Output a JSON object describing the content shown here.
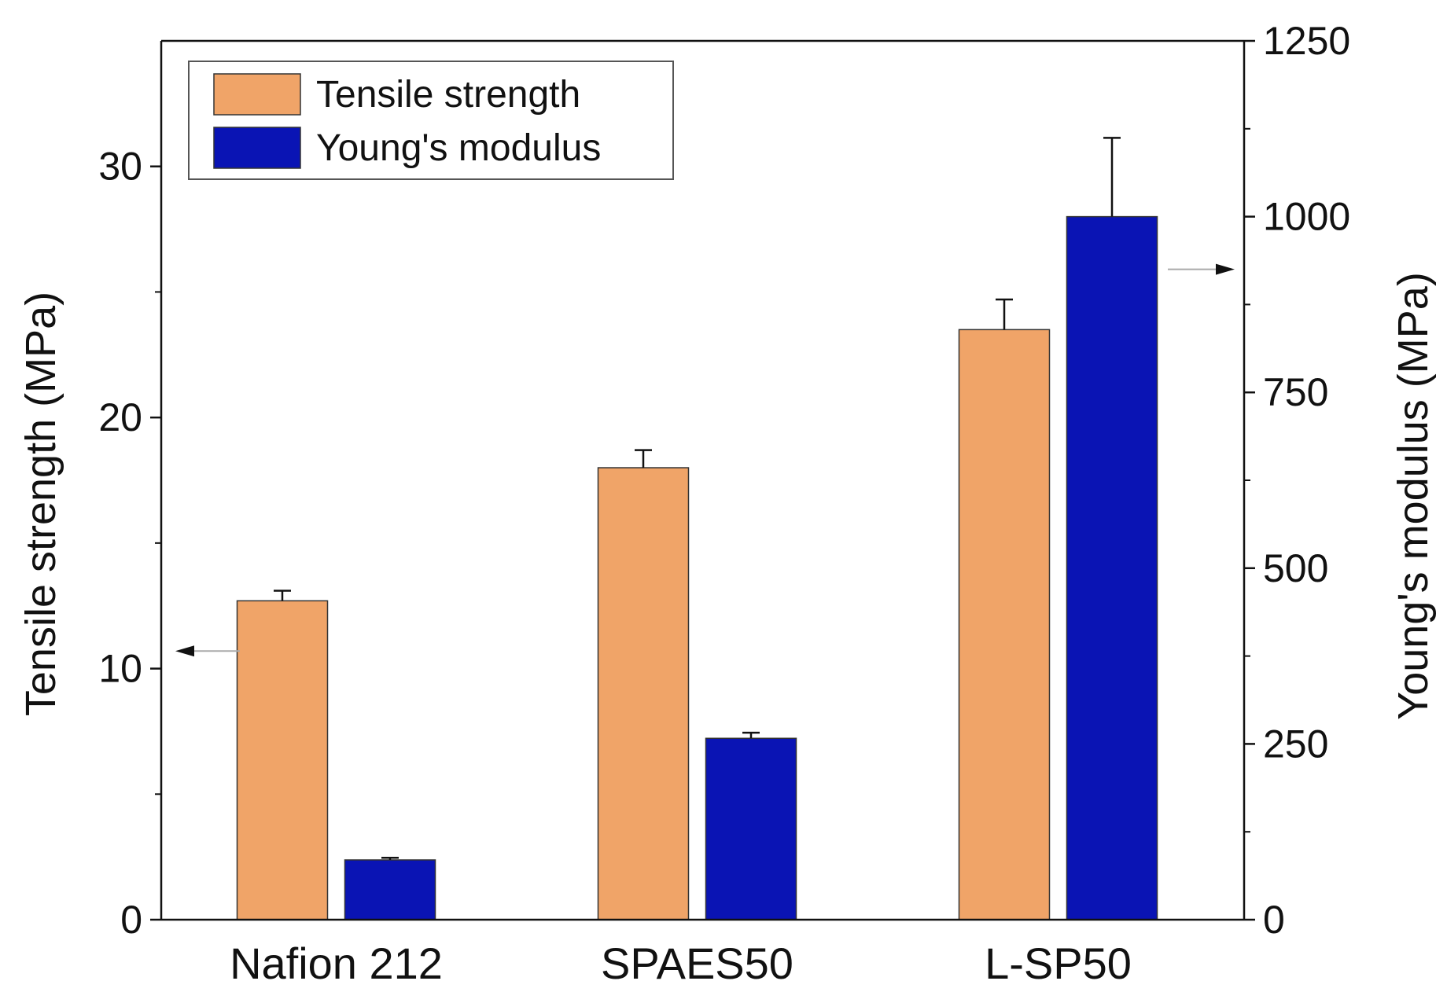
{
  "chart_data": {
    "type": "bar",
    "title": "",
    "categories": [
      "Nafion 212",
      "SPAES50",
      "L-SP50"
    ],
    "series": [
      {
        "name": "Tensile strength",
        "axis": "left",
        "color": "#F0A468",
        "values": [
          12.7,
          18.0,
          23.5
        ],
        "errors": [
          0.4,
          0.7,
          1.2
        ]
      },
      {
        "name": "Young's modulus",
        "axis": "right",
        "color": "#0A14B4",
        "values": [
          85,
          258,
          1000
        ],
        "errors": [
          3,
          8,
          112
        ]
      }
    ],
    "y_left": {
      "label": "Tensile strength (MPa)",
      "lim": [
        0,
        35
      ],
      "ticks": [
        0,
        10,
        20,
        30
      ],
      "minor_ticks": [
        5,
        15,
        25
      ],
      "arrow_at": 10.7
    },
    "y_right": {
      "label": "Young's modulus (MPa)",
      "lim": [
        0,
        1250
      ],
      "ticks": [
        0,
        250,
        500,
        750,
        1000,
        1250
      ],
      "minor_ticks": [
        125,
        375,
        625,
        875,
        1125
      ],
      "arrow_at": 925
    },
    "legend": {
      "position": "top-left",
      "entries": [
        "Tensile strength",
        "Young's modulus"
      ]
    }
  }
}
